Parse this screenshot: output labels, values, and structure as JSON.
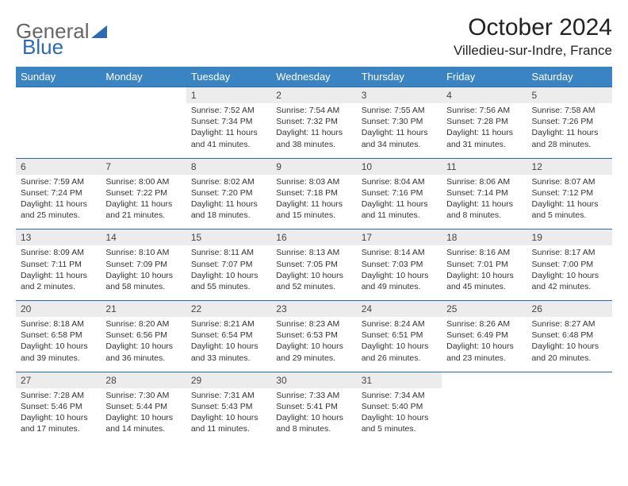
{
  "logo": {
    "part1": "General",
    "part2": "Blue"
  },
  "title": "October 2024",
  "location": "Villedieu-sur-Indre, France",
  "colors": {
    "header_bg": "#3a84c4",
    "header_text": "#ffffff",
    "daynum_bg": "#ececec",
    "border": "#2a6bb0",
    "logo_gray": "#666666",
    "logo_blue": "#2a6bb0",
    "text": "#333333",
    "page_bg": "#ffffff"
  },
  "dow": [
    "Sunday",
    "Monday",
    "Tuesday",
    "Wednesday",
    "Thursday",
    "Friday",
    "Saturday"
  ],
  "weeks": [
    [
      null,
      null,
      {
        "n": "1",
        "sr": "7:52 AM",
        "ss": "7:34 PM",
        "dl": "11 hours and 41 minutes."
      },
      {
        "n": "2",
        "sr": "7:54 AM",
        "ss": "7:32 PM",
        "dl": "11 hours and 38 minutes."
      },
      {
        "n": "3",
        "sr": "7:55 AM",
        "ss": "7:30 PM",
        "dl": "11 hours and 34 minutes."
      },
      {
        "n": "4",
        "sr": "7:56 AM",
        "ss": "7:28 PM",
        "dl": "11 hours and 31 minutes."
      },
      {
        "n": "5",
        "sr": "7:58 AM",
        "ss": "7:26 PM",
        "dl": "11 hours and 28 minutes."
      }
    ],
    [
      {
        "n": "6",
        "sr": "7:59 AM",
        "ss": "7:24 PM",
        "dl": "11 hours and 25 minutes."
      },
      {
        "n": "7",
        "sr": "8:00 AM",
        "ss": "7:22 PM",
        "dl": "11 hours and 21 minutes."
      },
      {
        "n": "8",
        "sr": "8:02 AM",
        "ss": "7:20 PM",
        "dl": "11 hours and 18 minutes."
      },
      {
        "n": "9",
        "sr": "8:03 AM",
        "ss": "7:18 PM",
        "dl": "11 hours and 15 minutes."
      },
      {
        "n": "10",
        "sr": "8:04 AM",
        "ss": "7:16 PM",
        "dl": "11 hours and 11 minutes."
      },
      {
        "n": "11",
        "sr": "8:06 AM",
        "ss": "7:14 PM",
        "dl": "11 hours and 8 minutes."
      },
      {
        "n": "12",
        "sr": "8:07 AM",
        "ss": "7:12 PM",
        "dl": "11 hours and 5 minutes."
      }
    ],
    [
      {
        "n": "13",
        "sr": "8:09 AM",
        "ss": "7:11 PM",
        "dl": "11 hours and 2 minutes."
      },
      {
        "n": "14",
        "sr": "8:10 AM",
        "ss": "7:09 PM",
        "dl": "10 hours and 58 minutes."
      },
      {
        "n": "15",
        "sr": "8:11 AM",
        "ss": "7:07 PM",
        "dl": "10 hours and 55 minutes."
      },
      {
        "n": "16",
        "sr": "8:13 AM",
        "ss": "7:05 PM",
        "dl": "10 hours and 52 minutes."
      },
      {
        "n": "17",
        "sr": "8:14 AM",
        "ss": "7:03 PM",
        "dl": "10 hours and 49 minutes."
      },
      {
        "n": "18",
        "sr": "8:16 AM",
        "ss": "7:01 PM",
        "dl": "10 hours and 45 minutes."
      },
      {
        "n": "19",
        "sr": "8:17 AM",
        "ss": "7:00 PM",
        "dl": "10 hours and 42 minutes."
      }
    ],
    [
      {
        "n": "20",
        "sr": "8:18 AM",
        "ss": "6:58 PM",
        "dl": "10 hours and 39 minutes."
      },
      {
        "n": "21",
        "sr": "8:20 AM",
        "ss": "6:56 PM",
        "dl": "10 hours and 36 minutes."
      },
      {
        "n": "22",
        "sr": "8:21 AM",
        "ss": "6:54 PM",
        "dl": "10 hours and 33 minutes."
      },
      {
        "n": "23",
        "sr": "8:23 AM",
        "ss": "6:53 PM",
        "dl": "10 hours and 29 minutes."
      },
      {
        "n": "24",
        "sr": "8:24 AM",
        "ss": "6:51 PM",
        "dl": "10 hours and 26 minutes."
      },
      {
        "n": "25",
        "sr": "8:26 AM",
        "ss": "6:49 PM",
        "dl": "10 hours and 23 minutes."
      },
      {
        "n": "26",
        "sr": "8:27 AM",
        "ss": "6:48 PM",
        "dl": "10 hours and 20 minutes."
      }
    ],
    [
      {
        "n": "27",
        "sr": "7:28 AM",
        "ss": "5:46 PM",
        "dl": "10 hours and 17 minutes."
      },
      {
        "n": "28",
        "sr": "7:30 AM",
        "ss": "5:44 PM",
        "dl": "10 hours and 14 minutes."
      },
      {
        "n": "29",
        "sr": "7:31 AM",
        "ss": "5:43 PM",
        "dl": "10 hours and 11 minutes."
      },
      {
        "n": "30",
        "sr": "7:33 AM",
        "ss": "5:41 PM",
        "dl": "10 hours and 8 minutes."
      },
      {
        "n": "31",
        "sr": "7:34 AM",
        "ss": "5:40 PM",
        "dl": "10 hours and 5 minutes."
      },
      null,
      null
    ]
  ],
  "labels": {
    "sunrise": "Sunrise: ",
    "sunset": "Sunset: ",
    "daylight": "Daylight: "
  }
}
